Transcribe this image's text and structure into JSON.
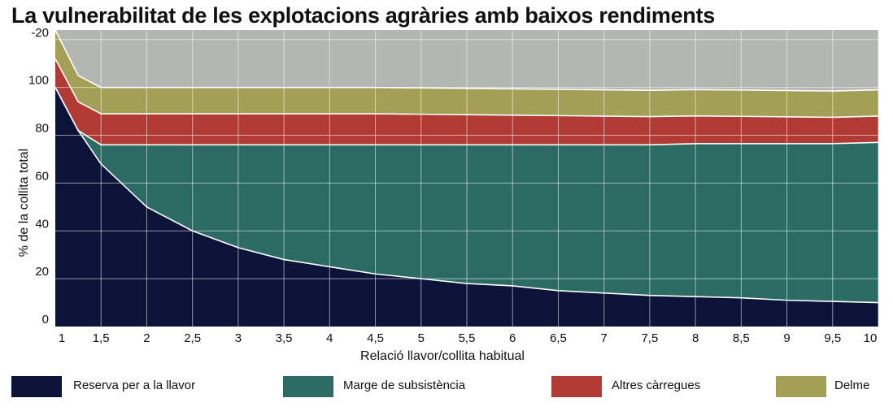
{
  "title": "La vulnerabilitat de les explotacions agràries amb baixos rendiments",
  "chart_data": {
    "type": "area",
    "stacked": true,
    "xlabel": "Relació llavor/collita habitual",
    "ylabel": "% de la collita total",
    "x_ticks": [
      "1",
      "1,5",
      "2",
      "2,5",
      "3",
      "3,5",
      "4",
      "4,5",
      "5",
      "5,5",
      "6",
      "6,5",
      "7",
      "7,5",
      "8",
      "8,5",
      "9",
      "9,5",
      "10"
    ],
    "y_ticks": [
      "0",
      "20",
      "40",
      "60",
      "80",
      "100",
      "-20"
    ],
    "ylim": [
      0,
      120
    ],
    "xlim": [
      1,
      10
    ],
    "grid": true,
    "x": [
      1,
      1.25,
      1.5,
      2,
      2.5,
      3,
      3.5,
      4,
      4.5,
      5,
      5.5,
      6,
      6.5,
      7,
      7.5,
      8,
      8.5,
      9,
      9.5,
      10
    ],
    "series": [
      {
        "name": "Reserva per a la llavor",
        "color": "#0b1438",
        "values": [
          100,
          82,
          68,
          50,
          40,
          33,
          28,
          25,
          22,
          20,
          18,
          17,
          15,
          14,
          13,
          12.5,
          12,
          11,
          10.5,
          10
        ]
      },
      {
        "name": "Marge de subsistència",
        "color": "#2c6b64",
        "values": [
          0,
          0,
          8,
          26,
          36,
          43,
          48,
          51,
          54,
          56,
          58,
          59,
          61,
          62,
          63,
          64,
          64.5,
          65.5,
          66,
          67
        ]
      },
      {
        "name": "Altres càrregues",
        "color": "#b23a34",
        "values": [
          12,
          12,
          13,
          13,
          13,
          13,
          13,
          13,
          13,
          12.8,
          12.6,
          12.4,
          12.2,
          12,
          11.8,
          11.6,
          11.4,
          11.2,
          11,
          11
        ]
      },
      {
        "name": "Delme",
        "color": "#a3a055",
        "values": [
          12,
          11,
          11,
          11,
          11,
          11,
          11,
          11,
          11,
          11,
          11,
          11,
          11,
          11,
          11,
          11,
          11,
          11,
          11,
          11
        ]
      }
    ],
    "background_color": "#b4b6b4",
    "legend_position": "bottom"
  },
  "legend": [
    {
      "label": "Reserva per a la llavor",
      "color": "#0b1438"
    },
    {
      "label": "Marge de subsistència",
      "color": "#2c6b64"
    },
    {
      "label": "Altres càrregues",
      "color": "#b23a34"
    },
    {
      "label": "Delme",
      "color": "#a3a055"
    }
  ]
}
